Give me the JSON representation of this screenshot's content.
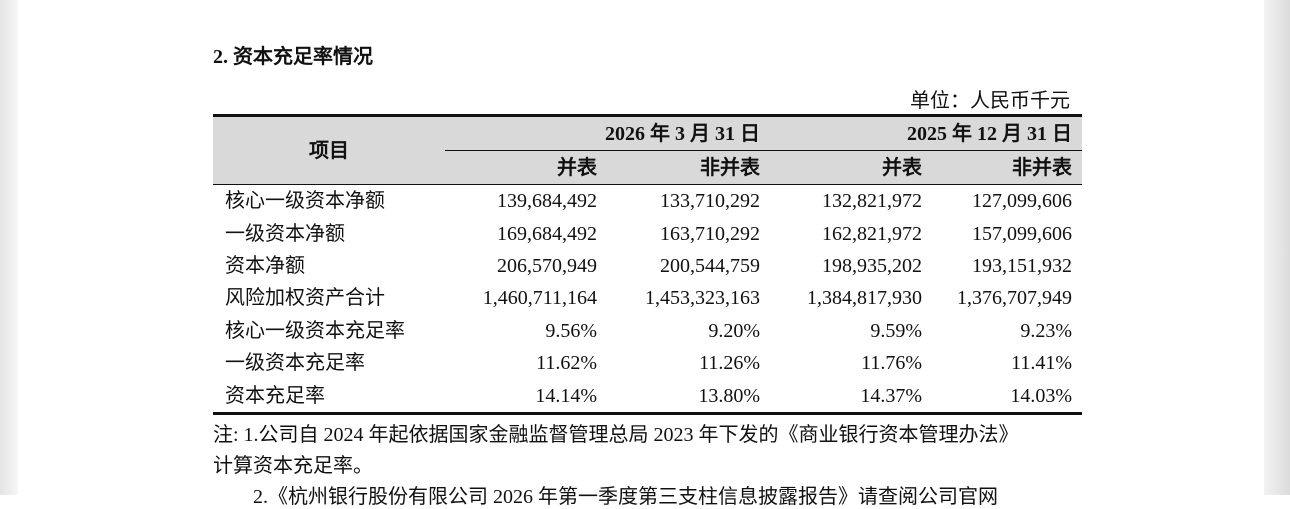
{
  "title": "2. 资本充足率情况",
  "unit": "单位：人民币千元",
  "table": {
    "header": {
      "item": "项目",
      "groups": [
        "2026 年 3 月 31 日",
        "2025 年 12 月 31 日"
      ],
      "subheaders": [
        "并表",
        "非并表",
        "并表",
        "非并表"
      ]
    },
    "rows": [
      [
        "核心一级资本净额",
        "139,684,492",
        "133,710,292",
        "132,821,972",
        "127,099,606"
      ],
      [
        "一级资本净额",
        "169,684,492",
        "163,710,292",
        "162,821,972",
        "157,099,606"
      ],
      [
        "资本净额",
        "206,570,949",
        "200,544,759",
        "198,935,202",
        "193,151,932"
      ],
      [
        "风险加权资产合计",
        "1,460,711,164",
        "1,453,323,163",
        "1,384,817,930",
        "1,376,707,949"
      ],
      [
        "核心一级资本充足率",
        "9.56%",
        "9.20%",
        "9.59%",
        "9.23%"
      ],
      [
        "一级资本充足率",
        "11.62%",
        "11.26%",
        "11.76%",
        "11.41%"
      ],
      [
        "资本充足率",
        "14.14%",
        "13.80%",
        "14.37%",
        "14.03%"
      ]
    ]
  },
  "notes": [
    "注: 1.公司自 2024 年起依据国家金融监督管理总局 2023 年下发的《商业银行资本管理办法》",
    "计算资本充足率。",
    "2.《杭州银行股份有限公司 2026 年第一季度第三支柱信息披露报告》请查阅公司官网"
  ]
}
